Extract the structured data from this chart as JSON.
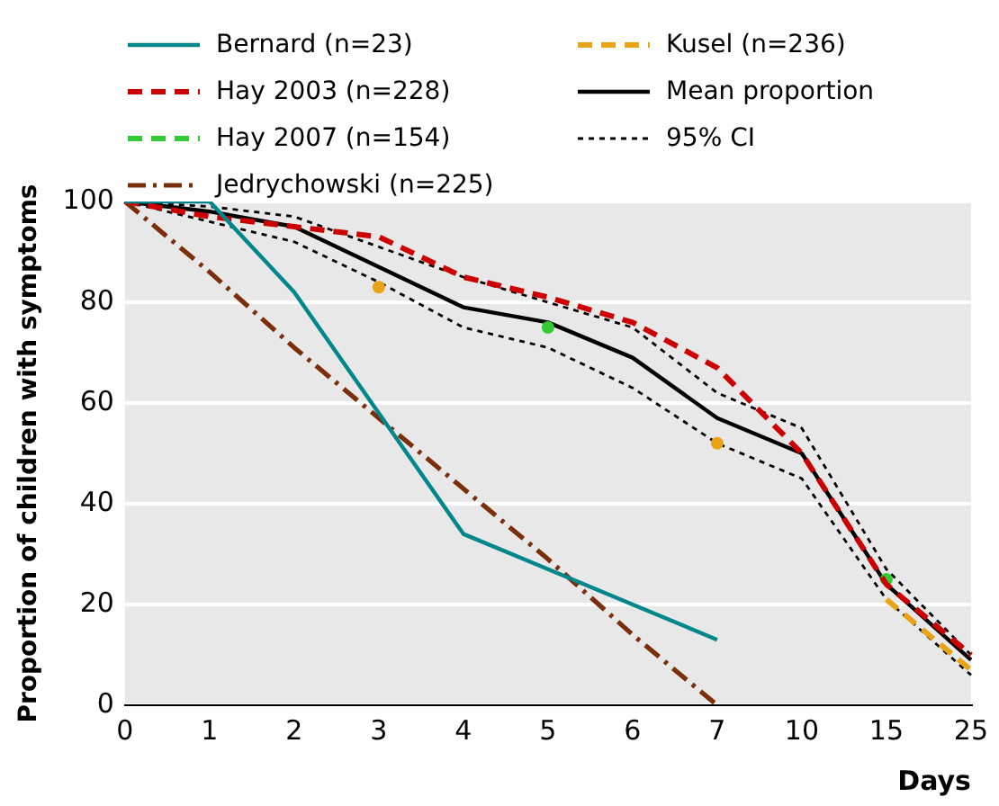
{
  "chart_data": {
    "type": "line",
    "xlabel": "Days",
    "ylabel": "Proportion of children with symptoms",
    "categories": [
      "0",
      "1",
      "2",
      "3",
      "4",
      "5",
      "6",
      "7",
      "10",
      "15",
      "25"
    ],
    "ylim": [
      0,
      100
    ],
    "yticks": [
      0,
      20,
      40,
      60,
      80,
      100
    ],
    "grid": "y",
    "legend": "top",
    "series": [
      {
        "name": "Bernard (n=23)",
        "color": "#00868b",
        "line_style": "solid",
        "values": [
          100,
          100,
          82,
          58,
          34,
          27,
          20,
          13,
          null,
          null,
          null
        ]
      },
      {
        "name": "Hay 2003 (n=228)",
        "color": "#cc0000",
        "line_style": "dashed",
        "values": [
          100,
          97,
          95,
          93,
          85,
          81,
          76,
          67,
          50,
          24,
          10
        ]
      },
      {
        "name": "Hay 2007 (n=154)",
        "type": "scatter",
        "color": "#33cc33",
        "line_style": "dashed",
        "values": [
          null,
          null,
          null,
          null,
          null,
          75,
          null,
          null,
          null,
          25,
          null
        ]
      },
      {
        "name": "Jedrychowski (n=225)",
        "color": "#7a2e0a",
        "line_style": "dashdot",
        "values": [
          100,
          86,
          71,
          57,
          43,
          29,
          14,
          0,
          null,
          null,
          null
        ]
      },
      {
        "name": "Kusel (n=236)",
        "color": "#e8a317",
        "line_style": "dashed",
        "values": [
          null,
          null,
          null,
          83,
          null,
          null,
          null,
          52,
          null,
          21,
          7
        ]
      },
      {
        "name": "Mean proportion",
        "color": "#000000",
        "line_style": "solid",
        "values": [
          100,
          98,
          95,
          87,
          79,
          76,
          69,
          57,
          50,
          24,
          9
        ]
      },
      {
        "name": "95% CI",
        "color": "#000000",
        "line_style": "dotted",
        "values": [
          100,
          99,
          97,
          91,
          85,
          80,
          75,
          62,
          55,
          27,
          10
        ]
      },
      {
        "color": "#000000",
        "line_style": "dotted",
        "values": [
          100,
          96,
          92,
          84,
          75,
          71,
          63,
          52,
          45,
          21,
          6
        ]
      }
    ]
  }
}
